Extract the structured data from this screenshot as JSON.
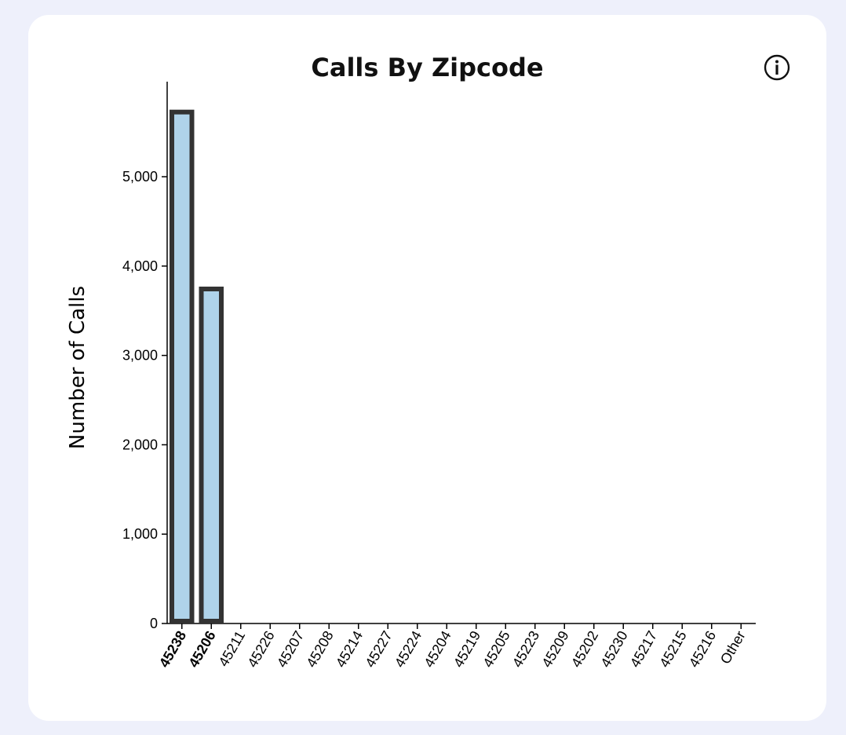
{
  "chart_data": {
    "type": "bar",
    "title": "Calls By Zipcode",
    "xlabel": "",
    "ylabel": "Number of Calls",
    "categories": [
      "45238",
      "45206",
      "45211",
      "45226",
      "45207",
      "45208",
      "45214",
      "45227",
      "45224",
      "45204",
      "45219",
      "45205",
      "45223",
      "45209",
      "45202",
      "45230",
      "45217",
      "45215",
      "45216",
      "Other"
    ],
    "values": [
      5750,
      3770,
      0,
      0,
      0,
      0,
      0,
      0,
      0,
      0,
      0,
      0,
      0,
      0,
      0,
      0,
      0,
      0,
      0,
      0
    ],
    "highlighted": [
      "45238",
      "45206"
    ],
    "yticks": [
      0,
      1000,
      2000,
      3000,
      4000,
      5000
    ],
    "ytick_labels": [
      "0",
      "1,000",
      "2,000",
      "3,000",
      "4,000",
      "5,000"
    ],
    "ylim": [
      0,
      5800
    ],
    "grid": false,
    "colors": {
      "bar_fill": "#afd3ea",
      "bar_stroke": "#333333",
      "axis": "#000000",
      "background": "#eef0fb",
      "card": "#ffffff"
    }
  },
  "icons": {
    "info": "info-circle-icon"
  }
}
